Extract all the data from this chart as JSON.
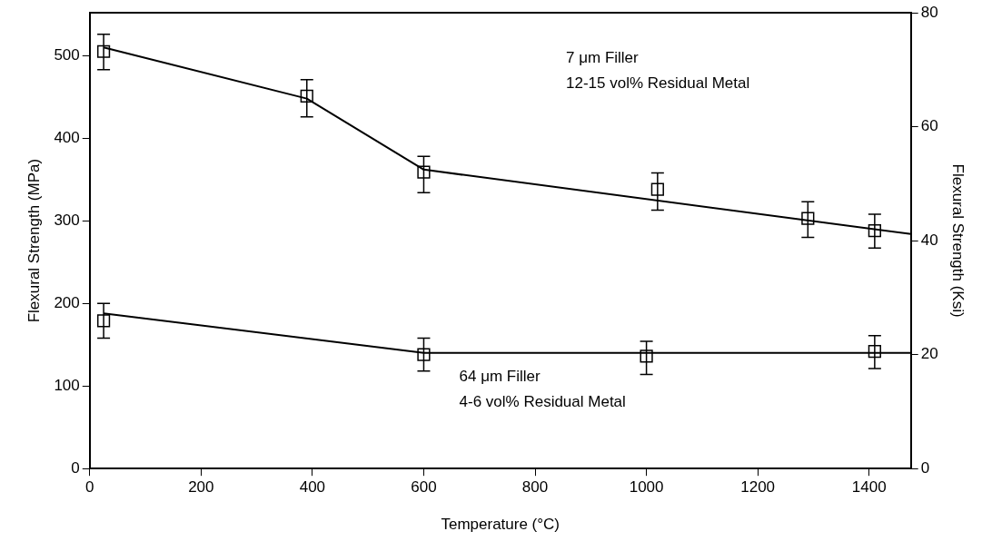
{
  "chart_data": {
    "type": "scatter",
    "xlabel": "Temperature (°C)",
    "ylabel": "Flexural Strength (MPa)",
    "y2label": "Flexural Strength (Ksi)",
    "xlim": [
      0,
      1475
    ],
    "xticks": [
      0,
      200,
      400,
      600,
      800,
      1000,
      1200,
      1400
    ],
    "ylim": [
      0,
      552
    ],
    "yticks": [
      0,
      100,
      200,
      300,
      400,
      500
    ],
    "y2lim": [
      0,
      80
    ],
    "y2ticks": [
      0,
      20,
      40,
      60,
      80
    ],
    "grid": false,
    "legend": false,
    "marker": "square",
    "series": [
      {
        "color": "#000000",
        "x": [
          25,
          390,
          600,
          1020,
          1290,
          1410
        ],
        "values": [
          505,
          451,
          359,
          338,
          303,
          288
        ],
        "errors": [
          [
            483,
            526
          ],
          [
            426,
            471
          ],
          [
            334,
            378
          ],
          [
            313,
            358
          ],
          [
            280,
            323
          ],
          [
            267,
            308
          ]
        ]
      },
      {
        "color": "#000000",
        "x": [
          25,
          600,
          1000,
          1410
        ],
        "values": [
          179,
          138,
          136,
          142
        ],
        "errors": [
          [
            158,
            200
          ],
          [
            118,
            158
          ],
          [
            114,
            154
          ],
          [
            121,
            161
          ]
        ]
      },
      {
        "type": "line",
        "color": "#000000",
        "marker": "none",
        "x": [
          25,
          390,
          600,
          1475
        ],
        "values": [
          510,
          448,
          362,
          284
        ]
      },
      {
        "type": "line",
        "color": "#000000",
        "marker": "none",
        "x": [
          25,
          600,
          1475
        ],
        "values": [
          188,
          140,
          140
        ]
      }
    ],
    "annotations": [
      "7 μm Filler",
      "12-15 vol% Residual Metal",
      "64 μm Filler",
      "4-6 vol% Residual Metal"
    ]
  }
}
